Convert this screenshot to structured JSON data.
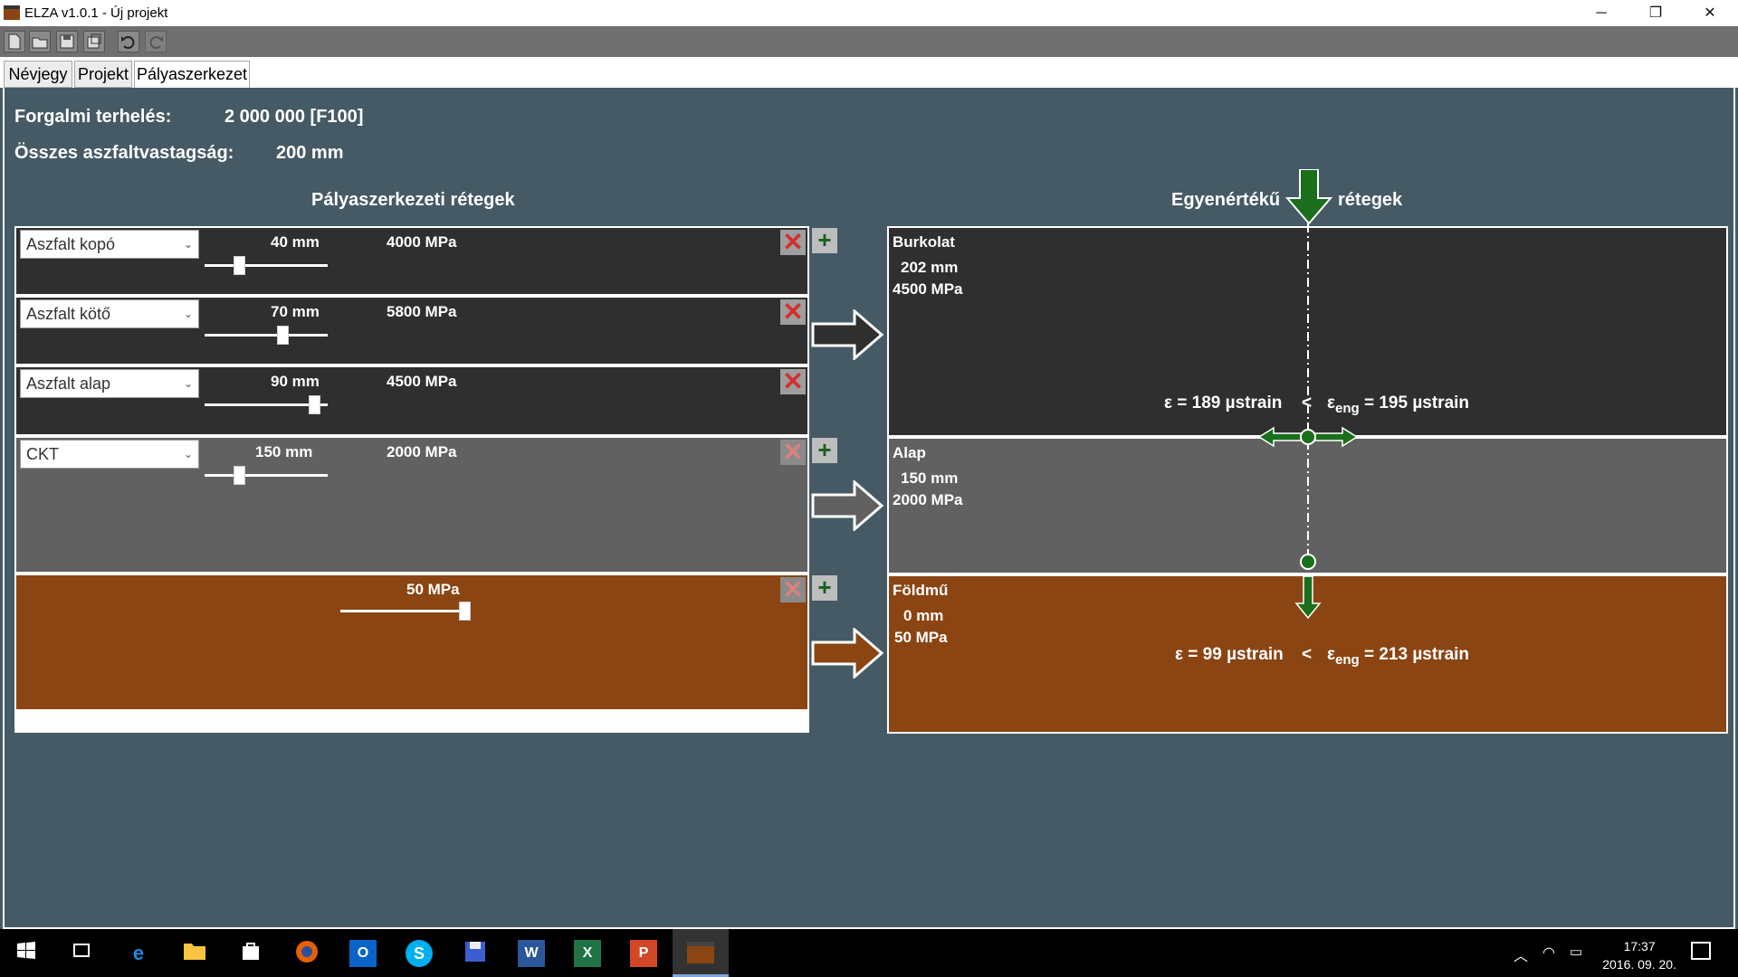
{
  "window": {
    "title": "ELZA v1.0.1 - Új projekt",
    "minimize": "─",
    "restore": "❐",
    "close": "✕"
  },
  "toolbar": {
    "icons": [
      "new-file-icon",
      "open-folder-icon",
      "save-icon",
      "save-as-icon",
      "undo-icon",
      "redo-icon"
    ]
  },
  "tabs": [
    {
      "label": "Névjegy"
    },
    {
      "label": "Projekt"
    },
    {
      "label": "Pályaszerkezet"
    }
  ],
  "summary": {
    "traffic_label": "Forgalmi terhelés:",
    "traffic_value": "2 000 000 [F100]",
    "thickness_label": "Összes aszfaltvastagság:",
    "thickness_value": "200 mm"
  },
  "left_heading": "Pályaszerkezeti rétegek",
  "right_heading_1": "Egyenértékű",
  "right_heading_2": "rétegek",
  "layers": [
    {
      "type": "Aszfalt kopó",
      "thickness": "40 mm",
      "modulus": "4000 MPa",
      "slider": 0.25
    },
    {
      "type": "Aszfalt kötő",
      "thickness": "70 mm",
      "modulus": "5800 MPa",
      "slider": 0.6
    },
    {
      "type": "Aszfalt alap",
      "thickness": "90 mm",
      "modulus": "4500 MPa",
      "slider": 0.87
    },
    {
      "type": "CKT",
      "thickness": "150 mm",
      "modulus": "2000 MPa",
      "slider": 0.25
    },
    {
      "type": "",
      "thickness": "",
      "modulus": "50 MPa",
      "slider": 0.98
    }
  ],
  "equivalent": [
    {
      "name": "Burkolat",
      "thickness": "202 mm",
      "modulus": "4500 MPa"
    },
    {
      "name": "Alap",
      "thickness": "150 mm",
      "modulus": "2000 MPa"
    },
    {
      "name": "Földmű",
      "thickness": "0 mm",
      "modulus": "50 MPa"
    }
  ],
  "strains": {
    "top_eps": "ε = 189 µstrain",
    "top_lt": "<",
    "top_eng": "ε",
    "top_eng_sub": "eng",
    "top_eng_val": "= 195 µstrain",
    "bottom_eps": "ε = 99 µstrain",
    "bottom_lt": "<",
    "bottom_eng": "ε",
    "bottom_eng_sub": "eng",
    "bottom_eng_val": "= 213 µstrain"
  },
  "colors": {
    "asphalt": "#3a3a3a",
    "base": "#616161",
    "soil": "#8b4513",
    "arrow_green": "#1b6e1b"
  },
  "taskbar": {
    "time": "17:37",
    "date": "2016. 09. 20."
  }
}
